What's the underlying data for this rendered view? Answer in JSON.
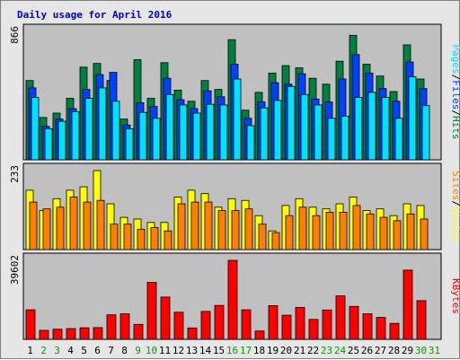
{
  "chart_data": {
    "type": "bar",
    "title": "Daily usage for April 2016",
    "categories": [
      "1",
      "2",
      "3",
      "4",
      "5",
      "6",
      "7",
      "8",
      "9",
      "10",
      "11",
      "12",
      "13",
      "14",
      "15",
      "16",
      "17",
      "18",
      "19",
      "20",
      "21",
      "22",
      "23",
      "24",
      "25",
      "26",
      "27",
      "28",
      "29",
      "30",
      "31"
    ],
    "weekend_days": [
      "2",
      "3",
      "9",
      "10",
      "16",
      "17",
      "23",
      "24",
      "30",
      "31"
    ],
    "panels": [
      {
        "id": "requests",
        "ymax_label": "866",
        "ylim": [
          0,
          866
        ],
        "legend": [
          {
            "text": "Hits",
            "color": "#008040"
          },
          {
            "text": "Files",
            "color": "#0040ff"
          },
          {
            "text": "Pages",
            "color": "#00e0ff"
          }
        ],
        "series": [
          {
            "name": "Hits",
            "color": "#008040",
            "values": [
              535,
              285,
              315,
              415,
              625,
              650,
              535,
              275,
              675,
              415,
              655,
              470,
              395,
              535,
              475,
              810,
              335,
              455,
              585,
              635,
              620,
              550,
              510,
              665,
              840,
              645,
              565,
              460,
              775,
              545,
              0
            ]
          },
          {
            "name": "Files",
            "color": "#0040ff",
            "values": [
              485,
              225,
              275,
              345,
              475,
              575,
              590,
              235,
              385,
              360,
              550,
              405,
              345,
              465,
              425,
              645,
              280,
              390,
              520,
              510,
              580,
              410,
              390,
              545,
              710,
              585,
              480,
              395,
              660,
              480,
              0
            ]
          },
          {
            "name": "Pages",
            "color": "#00e0ff",
            "values": [
              420,
              210,
              260,
              325,
              415,
              485,
              395,
              210,
              320,
              280,
              440,
              370,
              315,
              375,
              370,
              545,
              230,
              350,
              400,
              495,
              440,
              370,
              280,
              295,
              420,
              455,
              420,
              280,
              560,
              365,
              0
            ]
          }
        ]
      },
      {
        "id": "visits",
        "ymax_label": "233",
        "ylim": [
          0,
          233
        ],
        "legend": [
          {
            "text": "Visits",
            "color": "#ffff00"
          },
          {
            "text": "Sites",
            "color": "#ff8000"
          }
        ],
        "series": [
          {
            "name": "Visits",
            "color": "#ffff00",
            "values": [
              175,
              115,
              150,
              175,
              185,
              233,
              135,
              95,
              90,
              80,
              80,
              155,
              175,
              165,
              125,
              150,
              145,
              100,
              55,
              130,
              150,
              125,
              120,
              135,
              155,
              115,
              120,
              100,
              135,
              130,
              0
            ]
          },
          {
            "name": "Sites",
            "color": "#ff8000",
            "values": [
              140,
              120,
              125,
              155,
              140,
              145,
              75,
              75,
              60,
              65,
              55,
              135,
              140,
              140,
              115,
              115,
              120,
              75,
              50,
              100,
              125,
              100,
              110,
              110,
              130,
              105,
              95,
              85,
              105,
              90,
              0
            ]
          }
        ]
      },
      {
        "id": "kbytes",
        "ymax_label": "39602",
        "ylim": [
          0,
          39602
        ],
        "legend": [
          {
            "text": "KBytes",
            "color": "#ff0000"
          }
        ],
        "series": [
          {
            "name": "KBytes",
            "color": "#ff0000",
            "values": [
              14800,
              4500,
              5100,
              5400,
              5800,
              5900,
              12300,
              12800,
              7500,
              28600,
              21200,
              13600,
              5700,
              14000,
              17000,
              39602,
              14800,
              4200,
              16900,
              12100,
              16000,
              10000,
              14700,
              21800,
              16500,
              12800,
              11000,
              8000,
              34700,
              19400,
              0
            ]
          }
        ]
      }
    ]
  }
}
